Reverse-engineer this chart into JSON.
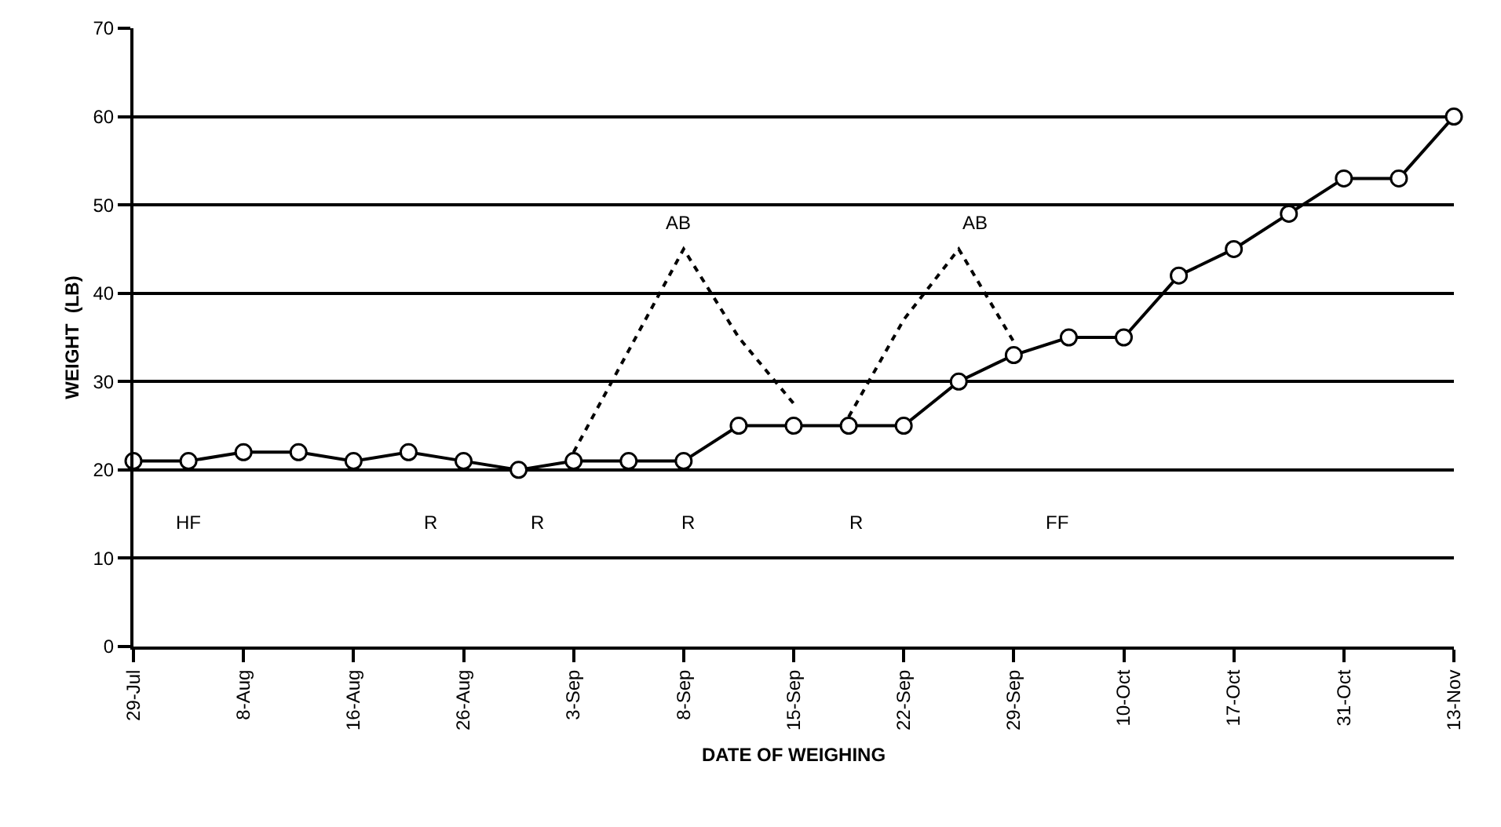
{
  "chart_data": {
    "type": "line",
    "xlabel": "DATE OF WEIGHING",
    "ylabel": "WEIGHT  (LB)",
    "categories": [
      "29-Jul",
      null,
      "8-Aug",
      null,
      "16-Aug",
      null,
      "26-Aug",
      null,
      "3-Sep",
      null,
      "8-Sep",
      null,
      "15-Sep",
      null,
      "22-Sep",
      null,
      "29-Sep",
      null,
      "10-Oct",
      null,
      "17-Oct",
      null,
      "31-Oct",
      null,
      "13-Nov"
    ],
    "series": [
      {
        "color": "#000000",
        "marker": "circle",
        "line_style": "solid",
        "values": [
          21,
          21,
          22,
          22,
          21,
          22,
          21,
          20,
          21,
          21,
          21,
          25,
          25,
          25,
          25,
          30,
          33,
          35,
          35,
          42,
          45,
          49,
          53,
          53,
          60
        ]
      },
      {
        "color": "#000000",
        "marker": "none",
        "line_style": "dashed",
        "values": [
          null,
          null,
          null,
          null,
          null,
          null,
          null,
          null,
          22,
          33.5,
          45,
          35,
          27.5,
          null,
          null,
          null,
          null,
          null,
          null,
          null,
          null,
          null,
          null,
          null,
          null
        ]
      },
      {
        "color": "#000000",
        "marker": "none",
        "line_style": "dashed",
        "values": [
          null,
          null,
          null,
          null,
          null,
          null,
          null,
          null,
          null,
          null,
          null,
          null,
          null,
          26,
          37,
          45,
          34.5,
          null,
          null,
          null,
          null,
          null,
          null,
          null,
          null
        ]
      }
    ],
    "ylim": [
      0,
      70
    ],
    "yticks": [
      0,
      10,
      20,
      30,
      40,
      50,
      60,
      70
    ],
    "grid": "y",
    "annotations": [
      "AB",
      "AB",
      "HF",
      "R",
      "R",
      "R",
      "R",
      "FF"
    ]
  }
}
